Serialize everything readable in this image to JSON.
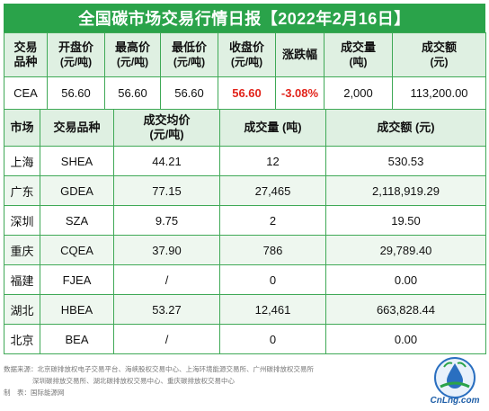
{
  "title": "全国碳市场交易行情日报【2022年2月16日】",
  "national": {
    "headers": [
      {
        "main": "交易",
        "sub": "品种"
      },
      {
        "main": "开盘价",
        "sub": "(元/吨)"
      },
      {
        "main": "最高价",
        "sub": "(元/吨)"
      },
      {
        "main": "最低价",
        "sub": "(元/吨)"
      },
      {
        "main": "收盘价",
        "sub": "(元/吨)"
      },
      {
        "main": "涨跌幅",
        "sub": ""
      },
      {
        "main": "成交量",
        "sub": "(吨)"
      },
      {
        "main": "成交额",
        "sub": "(元)"
      }
    ],
    "row": [
      "CEA",
      "56.60",
      "56.60",
      "56.60",
      "56.60",
      "-3.08%",
      "2,000",
      "113,200.00"
    ]
  },
  "regional": {
    "headers": {
      "market": "市场",
      "product": "交易品种",
      "avg_main": "成交均价",
      "avg_sub": "(元/吨)",
      "volume": "成交量 (吨)",
      "amount": "成交额 (元)"
    },
    "rows": [
      [
        "上海",
        "SHEA",
        "44.21",
        "12",
        "530.53"
      ],
      [
        "广东",
        "GDEA",
        "77.15",
        "27,465",
        "2,118,919.29"
      ],
      [
        "深圳",
        "SZA",
        "9.75",
        "2",
        "19.50"
      ],
      [
        "重庆",
        "CQEA",
        "37.90",
        "786",
        "29,789.40"
      ],
      [
        "福建",
        "FJEA",
        "/",
        "0",
        "0.00"
      ],
      [
        "湖北",
        "HBEA",
        "53.27",
        "12,461",
        "663,828.44"
      ],
      [
        "北京",
        "BEA",
        "/",
        "0",
        "0.00"
      ]
    ]
  },
  "footer": {
    "source_line1": "数据来源：北京碳排放权电子交易平台、海峡股权交易中心、上海环境能源交易所、广州碳排放权交易所",
    "source_line2": "深圳碳排放交易所、湖北碳排放权交易中心、重庆碳排放权交易中心",
    "maker": "制　表：国际能源网"
  },
  "logo": {
    "text": "CnLng.com",
    "icon": "energy-drop-logo-icon"
  },
  "colors": {
    "accent": "#2aa34a",
    "header_bg": "#dff0e2",
    "alt_row": "#eef7ef",
    "negative": "#e2231a"
  }
}
